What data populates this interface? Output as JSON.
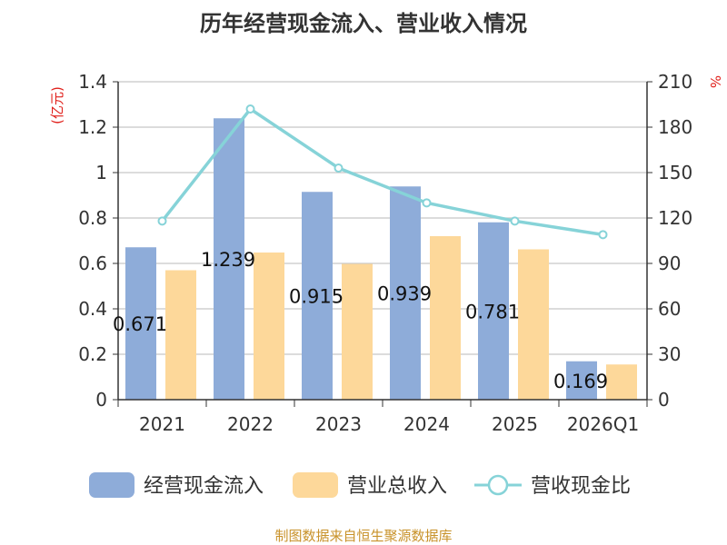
{
  "chart_data": {
    "type": "bar",
    "title": "历年经营现金流入、营业收入情况",
    "categories": [
      "2021",
      "2022",
      "2023",
      "2024",
      "2025",
      "2026Q1"
    ],
    "y_left": {
      "unit": "(亿元)",
      "range": [
        0,
        1.4
      ],
      "ticks": [
        "0",
        "0.2",
        "0.4",
        "0.6",
        "0.8",
        "1",
        "1.2",
        "1.4"
      ]
    },
    "y_right": {
      "unit": "%",
      "range": [
        0,
        210
      ],
      "ticks": [
        "0",
        "30",
        "60",
        "90",
        "120",
        "150",
        "180",
        "210"
      ]
    },
    "series": [
      {
        "name": "经营现金流入",
        "type": "bar",
        "axis": "left",
        "color": "#8eacd9",
        "values": [
          0.671,
          1.239,
          0.915,
          0.939,
          0.781,
          0.169
        ],
        "labels": [
          "0.671",
          "1.239",
          "0.915",
          "0.939",
          "0.781",
          "0.169"
        ]
      },
      {
        "name": "营业总收入",
        "type": "bar",
        "axis": "left",
        "color": "#fdd89a",
        "values": [
          0.57,
          0.648,
          0.598,
          0.72,
          0.662,
          0.155
        ]
      },
      {
        "name": "营收现金比",
        "type": "line",
        "axis": "right",
        "color": "#86d3d8",
        "values": [
          118,
          192,
          153,
          130,
          118,
          109
        ]
      }
    ],
    "grid": true,
    "legend": "bottom"
  },
  "source": "制图数据来自恒生聚源数据库"
}
